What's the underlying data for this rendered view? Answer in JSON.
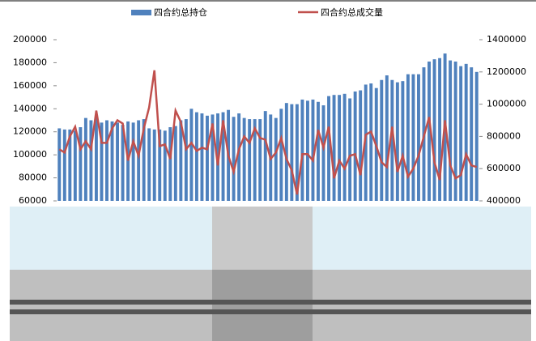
{
  "chart_data": {
    "type": "bar-line",
    "series": [
      {
        "name": "四合约总持仓",
        "color": "#4f81bd",
        "type": "bar",
        "values": [
          123000,
          122000,
          122000,
          121000,
          124000,
          132000,
          130000,
          133000,
          128000,
          130000,
          129000,
          128000,
          126000,
          129000,
          128000,
          130000,
          131000,
          123000,
          122000,
          122000,
          121000,
          124000,
          125000,
          130000,
          131000,
          140000,
          137000,
          136000,
          134000,
          135000,
          136000,
          137000,
          139000,
          133000,
          136000,
          132000,
          131000,
          131000,
          131000,
          138000,
          135000,
          132000,
          140000,
          145000,
          144000,
          144000,
          148000,
          147000,
          148000,
          146000,
          143000,
          151000,
          152000,
          152000,
          153000,
          149000,
          155000,
          156000,
          161000,
          162000,
          158000,
          165000,
          169000,
          165000,
          163000,
          164000,
          170000,
          170000,
          170000,
          176000,
          181000,
          183000,
          184000,
          188000,
          182000,
          181000,
          177000,
          179000,
          176000,
          172000
        ]
      },
      {
        "name": "四合约总成交量",
        "color": "#c0504d",
        "type": "line",
        "axis": "y2",
        "values": [
          720000,
          700000,
          800000,
          860000,
          720000,
          770000,
          720000,
          960000,
          760000,
          760000,
          850000,
          900000,
          880000,
          650000,
          770000,
          680000,
          850000,
          980000,
          1210000,
          740000,
          750000,
          660000,
          960000,
          890000,
          720000,
          760000,
          710000,
          730000,
          720000,
          880000,
          620000,
          900000,
          680000,
          580000,
          720000,
          800000,
          760000,
          850000,
          790000,
          780000,
          660000,
          700000,
          790000,
          660000,
          590000,
          440000,
          690000,
          690000,
          650000,
          840000,
          730000,
          860000,
          540000,
          650000,
          600000,
          680000,
          690000,
          560000,
          810000,
          830000,
          740000,
          640000,
          610000,
          860000,
          580000,
          680000,
          550000,
          600000,
          680000,
          800000,
          920000,
          640000,
          530000,
          900000,
          620000,
          540000,
          560000,
          690000,
          620000,
          610000
        ]
      }
    ],
    "ylim": [
      60000,
      200000
    ],
    "yticks": [
      60000,
      80000,
      100000,
      120000,
      140000,
      160000,
      180000,
      200000
    ],
    "y2lim": [
      400000,
      1400000
    ],
    "y2ticks": [
      400000,
      600000,
      800000,
      1000000,
      1200000,
      1400000
    ],
    "grid": false
  }
}
